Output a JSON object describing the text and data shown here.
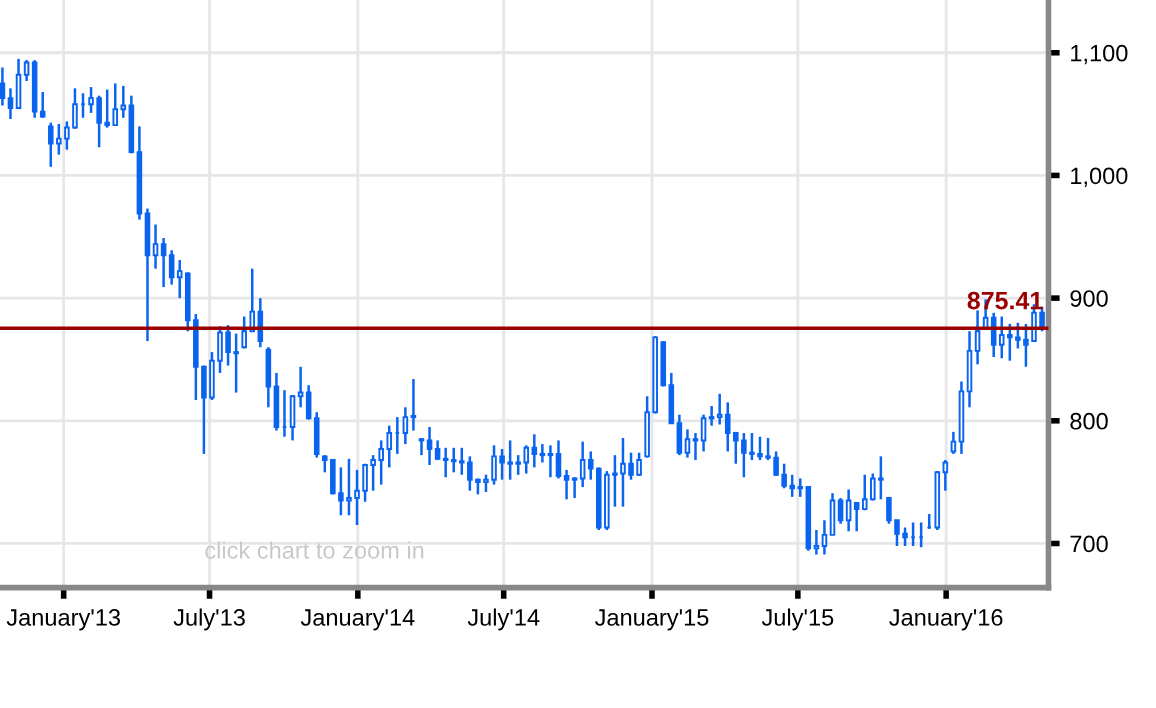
{
  "chart_data": {
    "type": "candlestick",
    "x": [
      "2012-10-17",
      "2012-10-27",
      "2012-11-06",
      "2012-11-16",
      "2012-11-26",
      "2012-12-06",
      "2012-12-16",
      "2012-12-26",
      "2013-01-05",
      "2013-01-15",
      "2013-01-25",
      "2013-02-04",
      "2013-02-14",
      "2013-02-24",
      "2013-03-06",
      "2013-03-16",
      "2013-03-26",
      "2013-04-05",
      "2013-04-15",
      "2013-04-25",
      "2013-05-05",
      "2013-05-15",
      "2013-05-25",
      "2013-06-04",
      "2013-06-14",
      "2013-06-24",
      "2013-07-04",
      "2013-07-14",
      "2013-07-24",
      "2013-08-03",
      "2013-08-13",
      "2013-08-23",
      "2013-09-02",
      "2013-09-12",
      "2013-09-22",
      "2013-10-02",
      "2013-10-12",
      "2013-10-22",
      "2013-11-01",
      "2013-11-11",
      "2013-11-21",
      "2013-12-01",
      "2013-12-11",
      "2013-12-21",
      "2013-12-31",
      "2014-01-10",
      "2014-01-20",
      "2014-01-30",
      "2014-02-09",
      "2014-02-19",
      "2014-03-01",
      "2014-03-11",
      "2014-03-21",
      "2014-03-31",
      "2014-04-10",
      "2014-04-20",
      "2014-04-30",
      "2014-05-10",
      "2014-05-20",
      "2014-05-30",
      "2014-06-09",
      "2014-06-19",
      "2014-06-29",
      "2014-07-09",
      "2014-07-19",
      "2014-07-29",
      "2014-08-08",
      "2014-08-18",
      "2014-08-28",
      "2014-09-07",
      "2014-09-17",
      "2014-09-27",
      "2014-10-07",
      "2014-10-17",
      "2014-10-27",
      "2014-11-06",
      "2014-11-16",
      "2014-11-26",
      "2014-12-06",
      "2014-12-16",
      "2014-12-26",
      "2015-01-05",
      "2015-01-15",
      "2015-01-25",
      "2015-02-04",
      "2015-02-14",
      "2015-02-24",
      "2015-03-06",
      "2015-03-16",
      "2015-03-26",
      "2015-04-05",
      "2015-04-15",
      "2015-04-25",
      "2015-05-05",
      "2015-05-15",
      "2015-05-25",
      "2015-06-04",
      "2015-06-14",
      "2015-06-24",
      "2015-07-04",
      "2015-07-14",
      "2015-07-24",
      "2015-08-03",
      "2015-08-13",
      "2015-08-23",
      "2015-09-02",
      "2015-09-12",
      "2015-09-22",
      "2015-10-02",
      "2015-10-12",
      "2015-10-22",
      "2015-11-01",
      "2015-11-11",
      "2015-11-21",
      "2015-12-01",
      "2015-12-11",
      "2015-12-21",
      "2015-12-31",
      "2016-01-10",
      "2016-01-20",
      "2016-01-30",
      "2016-02-09",
      "2016-02-19",
      "2016-02-29",
      "2016-03-10",
      "2016-03-20",
      "2016-03-30",
      "2016-04-09",
      "2016-04-19",
      "2016-04-29"
    ],
    "series": [
      {
        "color": "#0a64f0",
        "ohlc": [
          [
            1075,
            1088,
            1057,
            1063
          ],
          [
            1063,
            1071,
            1046,
            1055
          ],
          [
            1055,
            1095,
            1054,
            1082
          ],
          [
            1082,
            1094,
            1077,
            1092
          ],
          [
            1092,
            1094,
            1047,
            1052
          ],
          [
            1052,
            1068,
            1047,
            1048
          ],
          [
            1040,
            1043,
            1007,
            1026
          ],
          [
            1026,
            1042,
            1017,
            1030
          ],
          [
            1030,
            1044,
            1021,
            1039
          ],
          [
            1039,
            1071,
            1038,
            1058
          ],
          [
            1058,
            1067,
            1047,
            1058
          ],
          [
            1058,
            1072,
            1051,
            1063
          ],
          [
            1063,
            1065,
            1023,
            1043
          ],
          [
            1043,
            1070,
            1039,
            1041
          ],
          [
            1041,
            1075,
            1041,
            1054
          ],
          [
            1054,
            1073,
            1047,
            1057
          ],
          [
            1057,
            1065,
            1018,
            1019
          ],
          [
            1019,
            1040,
            964,
            969
          ],
          [
            969,
            973,
            865,
            935
          ],
          [
            935,
            960,
            924,
            944
          ],
          [
            944,
            949,
            909,
            935
          ],
          [
            935,
            939,
            911,
            917
          ],
          [
            917,
            931,
            900,
            922
          ],
          [
            920,
            921,
            873,
            882
          ],
          [
            882,
            887,
            817,
            844
          ],
          [
            844,
            845,
            773,
            819
          ],
          [
            819,
            856,
            817,
            849
          ],
          [
            849,
            877,
            839,
            872
          ],
          [
            872,
            878,
            845,
            856
          ],
          [
            856,
            871,
            823,
            855
          ],
          [
            860,
            885,
            859,
            873
          ],
          [
            873,
            924,
            873,
            889
          ],
          [
            889,
            900,
            860,
            865
          ],
          [
            858,
            860,
            811,
            828
          ],
          [
            828,
            839,
            792,
            795
          ],
          [
            795,
            825,
            787,
            795
          ],
          [
            795,
            821,
            784,
            820
          ],
          [
            820,
            844,
            811,
            823
          ],
          [
            823,
            829,
            801,
            802
          ],
          [
            802,
            807,
            770,
            773
          ],
          [
            771,
            772,
            758,
            768
          ],
          [
            768,
            768,
            740,
            741
          ],
          [
            741,
            762,
            723,
            735
          ],
          [
            735,
            769,
            723,
            737
          ],
          [
            737,
            760,
            715,
            743
          ],
          [
            743,
            765,
            734,
            764
          ],
          [
            764,
            772,
            743,
            768
          ],
          [
            768,
            784,
            748,
            777
          ],
          [
            777,
            796,
            762,
            790
          ],
          [
            790,
            803,
            773,
            790
          ],
          [
            790,
            811,
            781,
            803
          ],
          [
            803,
            834,
            792,
            804
          ],
          [
            785,
            786,
            772,
            784
          ],
          [
            784,
            795,
            764,
            777
          ],
          [
            777,
            784,
            768,
            769
          ],
          [
            769,
            778,
            754,
            768
          ],
          [
            768,
            778,
            758,
            767
          ],
          [
            767,
            778,
            756,
            766
          ],
          [
            766,
            771,
            743,
            752
          ],
          [
            752,
            753,
            740,
            750
          ],
          [
            750,
            756,
            742,
            752
          ],
          [
            752,
            780,
            748,
            771
          ],
          [
            771,
            777,
            752,
            766
          ],
          [
            766,
            784,
            752,
            765
          ],
          [
            765,
            772,
            756,
            766
          ],
          [
            766,
            780,
            757,
            778
          ],
          [
            778,
            789,
            762,
            773
          ],
          [
            773,
            781,
            766,
            772
          ],
          [
            772,
            780,
            754,
            773
          ],
          [
            773,
            784,
            753,
            755
          ],
          [
            755,
            760,
            736,
            752
          ],
          [
            752,
            754,
            737,
            753
          ],
          [
            753,
            783,
            746,
            768
          ],
          [
            768,
            775,
            752,
            761
          ],
          [
            761,
            762,
            711,
            713
          ],
          [
            713,
            759,
            711,
            756
          ],
          [
            756,
            772,
            730,
            757
          ],
          [
            757,
            786,
            730,
            765
          ],
          [
            765,
            774,
            752,
            756
          ],
          [
            756,
            774,
            755,
            768
          ],
          [
            771,
            820,
            770,
            807
          ],
          [
            807,
            869,
            806,
            868
          ],
          [
            864,
            865,
            828,
            829
          ],
          [
            829,
            839,
            798,
            798
          ],
          [
            798,
            805,
            772,
            774
          ],
          [
            774,
            793,
            770,
            785
          ],
          [
            785,
            790,
            768,
            784
          ],
          [
            784,
            805,
            775,
            802
          ],
          [
            802,
            812,
            796,
            803
          ],
          [
            803,
            822,
            797,
            805
          ],
          [
            805,
            815,
            775,
            790
          ],
          [
            790,
            791,
            765,
            784
          ],
          [
            784,
            790,
            754,
            774
          ],
          [
            774,
            790,
            768,
            773
          ],
          [
            773,
            787,
            768,
            771
          ],
          [
            771,
            786,
            768,
            770
          ],
          [
            770,
            775,
            755,
            756
          ],
          [
            756,
            765,
            745,
            747
          ],
          [
            747,
            756,
            738,
            745
          ],
          [
            745,
            753,
            738,
            746
          ],
          [
            746,
            746,
            694,
            696
          ],
          [
            696,
            711,
            691,
            698
          ],
          [
            698,
            719,
            691,
            707
          ],
          [
            707,
            741,
            707,
            735
          ],
          [
            735,
            737,
            716,
            719
          ],
          [
            719,
            744,
            710,
            735
          ],
          [
            733,
            733,
            710,
            728
          ],
          [
            728,
            756,
            727,
            736
          ],
          [
            736,
            757,
            735,
            753
          ],
          [
            753,
            771,
            736,
            752
          ],
          [
            737,
            738,
            716,
            719
          ],
          [
            719,
            719,
            698,
            708
          ],
          [
            708,
            713,
            698,
            705
          ],
          [
            705,
            717,
            698,
            705
          ],
          [
            705,
            717,
            697,
            705
          ],
          [
            713,
            724,
            712,
            713
          ],
          [
            713,
            759,
            711,
            758
          ],
          [
            758,
            768,
            743,
            766
          ],
          [
            775,
            791,
            773,
            783
          ],
          [
            783,
            832,
            773,
            824
          ],
          [
            824,
            873,
            811,
            857
          ],
          [
            857,
            890,
            846,
            873
          ],
          [
            875,
            899,
            874,
            884
          ],
          [
            884,
            888,
            852,
            862
          ],
          [
            862,
            885,
            851,
            870
          ],
          [
            870,
            879,
            849,
            868
          ],
          [
            868,
            880,
            859,
            866
          ],
          [
            866,
            879,
            844,
            862
          ],
          [
            865,
            895,
            865,
            888
          ],
          [
            888,
            893,
            873,
            875
          ]
        ]
      }
    ],
    "xlim": [
      "2012-10-14",
      "2016-05-07"
    ],
    "xticks": [
      {
        "value": "2013-01-01",
        "label": "January'13"
      },
      {
        "value": "2013-07-01",
        "label": "July'13"
      },
      {
        "value": "2014-01-01",
        "label": "January'14"
      },
      {
        "value": "2014-07-01",
        "label": "July'14"
      },
      {
        "value": "2015-01-01",
        "label": "January'15"
      },
      {
        "value": "2015-07-01",
        "label": "July'15"
      },
      {
        "value": "2016-01-01",
        "label": "January'16"
      }
    ],
    "ylim": [
      664,
      1143
    ],
    "yticks": [
      700,
      800,
      900,
      {
        "value": 1000,
        "label": "1,000"
      },
      {
        "value": 1100,
        "label": "1,100"
      }
    ],
    "grid": true,
    "ref_lines": [
      {
        "axis": "y",
        "value": 875.41,
        "label": "875.41",
        "color": "#9b0000"
      }
    ],
    "annotations": [
      {
        "text": "click chart to zoom in"
      }
    ]
  }
}
